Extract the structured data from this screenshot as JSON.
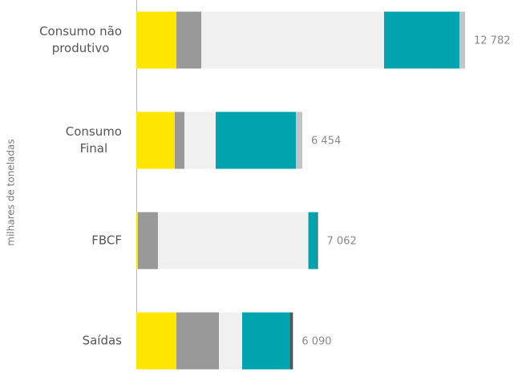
{
  "chart_data": {
    "type": "stacked-barh",
    "y_label": "milhares de toneladas",
    "categories": [
      [
        "Consumo não",
        "produtivo"
      ],
      [
        "Consumo",
        "Final"
      ],
      [
        "FBCF"
      ],
      [
        "Saídas"
      ]
    ],
    "series": [
      {
        "color": "#ffe600",
        "values": [
          1559,
          1496,
          62,
          1559
        ]
      },
      {
        "color": "#999999",
        "values": [
          966,
          374,
          779,
          1652
        ]
      },
      {
        "color": "#f0f0f0",
        "values": [
          7107,
          1216,
          5847,
          904
        ]
      },
      {
        "color": "#00a3ae",
        "values": [
          2930,
          3117,
          343,
          1850
        ]
      },
      {
        "color": "#c4c4c4",
        "values": [
          220,
          251,
          0,
          0
        ]
      },
      {
        "color": "#555555",
        "values": [
          0,
          0,
          31,
          125
        ]
      }
    ],
    "totals": [
      12782,
      6454,
      7062,
      6090
    ],
    "value_labels": [
      "12 782",
      "6 454",
      "7 062",
      "6 090"
    ]
  }
}
